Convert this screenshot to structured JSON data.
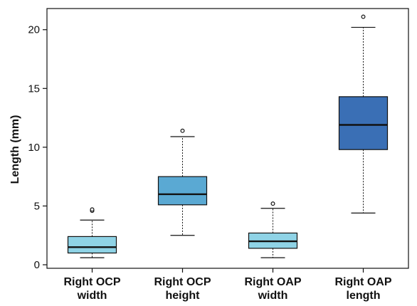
{
  "chart_data": {
    "type": "boxplot",
    "ylabel": "Length (mm)",
    "ylim": [
      -0.3,
      21.8
    ],
    "yticks": [
      0,
      5,
      10,
      15,
      20
    ],
    "categories": [
      [
        "Right OCP",
        "width"
      ],
      [
        "Right OCP",
        "height"
      ],
      [
        "Right OAP",
        "width"
      ],
      [
        "Right OAP",
        "length"
      ]
    ],
    "boxes": [
      {
        "whisker_low": 0.6,
        "q1": 1.0,
        "median": 1.5,
        "q3": 2.4,
        "whisker_high": 3.8,
        "outliers": [
          4.6,
          4.7
        ],
        "color": "#8fd3e6"
      },
      {
        "whisker_low": 2.5,
        "q1": 5.1,
        "median": 6.0,
        "q3": 7.5,
        "whisker_high": 10.9,
        "outliers": [
          11.4
        ],
        "color": "#5aa9d3"
      },
      {
        "whisker_low": 0.6,
        "q1": 1.4,
        "median": 2.0,
        "q3": 2.7,
        "whisker_high": 4.8,
        "outliers": [
          5.2
        ],
        "color": "#8fd3e6"
      },
      {
        "whisker_low": 4.4,
        "q1": 9.8,
        "median": 11.9,
        "q3": 14.3,
        "whisker_high": 20.2,
        "outliers": [
          21.1
        ],
        "color": "#3a6fb5"
      }
    ]
  }
}
